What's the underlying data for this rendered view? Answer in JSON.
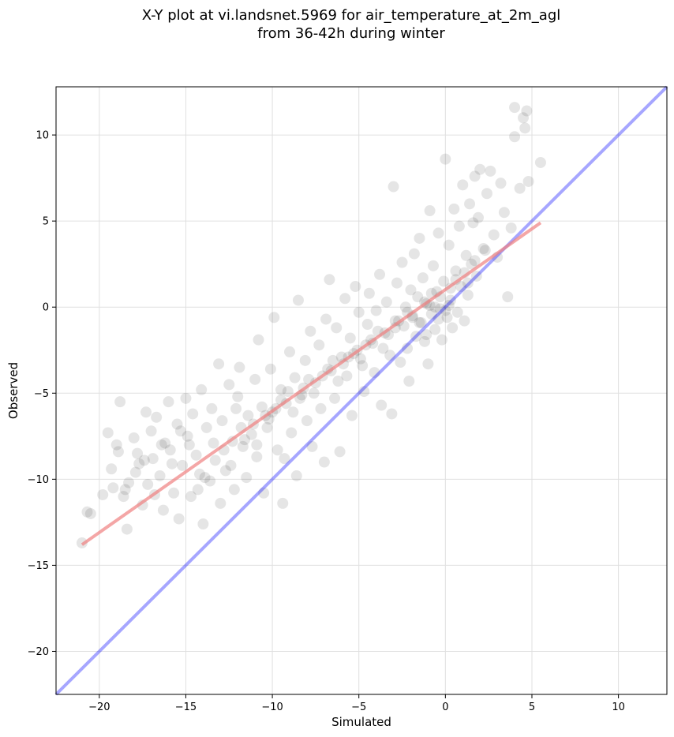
{
  "chart_data": {
    "type": "scatter",
    "title_line1": "X-Y plot at vi.landsnet.5969 for air_temperature_at_2m_agl",
    "title_line2": "from 36-42h during winter",
    "xlabel": "Simulated",
    "ylabel": "Observed",
    "xlim": [
      -22.5,
      12.8
    ],
    "ylim": [
      -22.5,
      12.8
    ],
    "xticks": [
      -20,
      -15,
      -10,
      -5,
      0,
      5,
      10
    ],
    "yticks": [
      -20,
      -15,
      -10,
      -5,
      0,
      5,
      10
    ],
    "xtick_labels": [
      "−20",
      "−15",
      "−10",
      "−5",
      "0",
      "5",
      "10"
    ],
    "ytick_labels": [
      "−20",
      "−15",
      "−10",
      "−5",
      "0",
      "5",
      "10"
    ],
    "grid": true,
    "marker_color": "#000000",
    "marker_alpha": 0.1,
    "points": [
      [
        -21.0,
        -13.7
      ],
      [
        -20.7,
        -11.9
      ],
      [
        -20.5,
        -12.0
      ],
      [
        -19.5,
        -7.3
      ],
      [
        -19.3,
        -9.4
      ],
      [
        -19.2,
        -10.5
      ],
      [
        -19.0,
        -8.0
      ],
      [
        -18.8,
        -5.5
      ],
      [
        -18.6,
        -11.0
      ],
      [
        -18.4,
        -12.9
      ],
      [
        -18.3,
        -10.2
      ],
      [
        -18.0,
        -7.6
      ],
      [
        -17.8,
        -8.5
      ],
      [
        -17.7,
        -9.1
      ],
      [
        -17.5,
        -11.5
      ],
      [
        -17.3,
        -6.1
      ],
      [
        -17.2,
        -10.3
      ],
      [
        -17.0,
        -7.2
      ],
      [
        -16.9,
        -8.8
      ],
      [
        -16.7,
        -6.4
      ],
      [
        -16.5,
        -9.8
      ],
      [
        -16.3,
        -11.8
      ],
      [
        -16.2,
        -7.9
      ],
      [
        -16.0,
        -5.5
      ],
      [
        -15.9,
        -8.3
      ],
      [
        -15.7,
        -10.8
      ],
      [
        -15.5,
        -6.8
      ],
      [
        -15.4,
        -12.3
      ],
      [
        -15.2,
        -9.2
      ],
      [
        -15.0,
        -5.3
      ],
      [
        -14.9,
        -7.5
      ],
      [
        -14.7,
        -11.0
      ],
      [
        -14.6,
        -6.2
      ],
      [
        -14.4,
        -8.6
      ],
      [
        -14.2,
        -9.7
      ],
      [
        -14.1,
        -4.8
      ],
      [
        -14.0,
        -12.6
      ],
      [
        -13.8,
        -7.0
      ],
      [
        -13.6,
        -10.1
      ],
      [
        -13.5,
        -5.9
      ],
      [
        -13.3,
        -8.9
      ],
      [
        -13.1,
        -3.3
      ],
      [
        -13.0,
        -11.4
      ],
      [
        -12.9,
        -6.6
      ],
      [
        -12.7,
        -9.5
      ],
      [
        -12.5,
        -4.5
      ],
      [
        -12.3,
        -7.8
      ],
      [
        -12.2,
        -10.6
      ],
      [
        -12.0,
        -5.2
      ],
      [
        -11.9,
        -3.5
      ],
      [
        -11.7,
        -8.1
      ],
      [
        -11.5,
        -9.9
      ],
      [
        -11.4,
        -6.3
      ],
      [
        -11.2,
        -7.4
      ],
      [
        -11.0,
        -4.2
      ],
      [
        -10.9,
        -8.7
      ],
      [
        -10.8,
        -1.9
      ],
      [
        -10.6,
        -5.8
      ],
      [
        -10.5,
        -10.8
      ],
      [
        -10.3,
        -7.0
      ],
      [
        -10.1,
        -3.6
      ],
      [
        -10.0,
        -6.1
      ],
      [
        -9.9,
        -0.6
      ],
      [
        -9.7,
        -8.3
      ],
      [
        -9.5,
        -4.8
      ],
      [
        -9.4,
        -11.4
      ],
      [
        -9.2,
        -5.6
      ],
      [
        -9.0,
        -2.6
      ],
      [
        -8.9,
        -7.3
      ],
      [
        -8.7,
        -4.1
      ],
      [
        -8.6,
        -9.8
      ],
      [
        -8.5,
        0.4
      ],
      [
        -8.3,
        -5.1
      ],
      [
        -8.1,
        -3.1
      ],
      [
        -8.0,
        -6.6
      ],
      [
        -7.8,
        -1.4
      ],
      [
        -7.7,
        -8.1
      ],
      [
        -7.5,
        -4.4
      ],
      [
        -7.3,
        -2.2
      ],
      [
        -7.2,
        -5.9
      ],
      [
        -7.0,
        -9.0
      ],
      [
        -6.9,
        -0.7
      ],
      [
        -6.7,
        1.6
      ],
      [
        -6.6,
        -3.7
      ],
      [
        -6.4,
        -5.3
      ],
      [
        -6.3,
        -1.2
      ],
      [
        -6.1,
        -8.4
      ],
      [
        -6.0,
        -2.9
      ],
      [
        -5.8,
        0.5
      ],
      [
        -5.7,
        -4.0
      ],
      [
        -5.5,
        -1.8
      ],
      [
        -5.4,
        -6.3
      ],
      [
        -5.2,
        1.2
      ],
      [
        -5.1,
        -2.5
      ],
      [
        -5.0,
        -0.3
      ],
      [
        -4.8,
        -3.4
      ],
      [
        -4.7,
        -4.9
      ],
      [
        -4.5,
        -1.0
      ],
      [
        -4.4,
        0.8
      ],
      [
        -4.2,
        -2.1
      ],
      [
        -4.1,
        -3.8
      ],
      [
        -4.0,
        -0.2
      ],
      [
        -3.8,
        1.9
      ],
      [
        -3.7,
        -5.7
      ],
      [
        -3.5,
        -1.5
      ],
      [
        -3.4,
        0.3
      ],
      [
        -3.2,
        -2.8
      ],
      [
        -3.1,
        -6.2
      ],
      [
        -3.0,
        7.0
      ],
      [
        -2.9,
        -0.8
      ],
      [
        -2.8,
        1.4
      ],
      [
        -2.6,
        -3.2
      ],
      [
        -2.5,
        2.6
      ],
      [
        -2.4,
        -1.1
      ],
      [
        -2.3,
        0.0
      ],
      [
        -2.2,
        -2.4
      ],
      [
        -2.1,
        -4.3
      ],
      [
        -2.0,
        1.0
      ],
      [
        -1.9,
        -0.5
      ],
      [
        -1.8,
        3.1
      ],
      [
        -1.7,
        -1.7
      ],
      [
        -1.6,
        0.6
      ],
      [
        -1.5,
        4.0
      ],
      [
        -1.4,
        -0.9
      ],
      [
        -1.3,
        1.7
      ],
      [
        -1.2,
        -2.0
      ],
      [
        -1.1,
        0.2
      ],
      [
        -1.0,
        -3.3
      ],
      [
        -0.9,
        5.6
      ],
      [
        -0.8,
        -0.4
      ],
      [
        -0.7,
        2.4
      ],
      [
        -0.6,
        -1.3
      ],
      [
        -0.5,
        0.9
      ],
      [
        -0.4,
        4.3
      ],
      [
        -0.3,
        -0.1
      ],
      [
        -0.2,
        -1.9
      ],
      [
        -0.1,
        1.5
      ],
      [
        0.0,
        8.6
      ],
      [
        0.1,
        -0.6
      ],
      [
        0.2,
        3.6
      ],
      [
        0.3,
        0.4
      ],
      [
        0.4,
        -1.2
      ],
      [
        0.5,
        5.7
      ],
      [
        0.6,
        2.1
      ],
      [
        0.7,
        -0.3
      ],
      [
        0.8,
        4.7
      ],
      [
        0.9,
        1.2
      ],
      [
        1.0,
        7.1
      ],
      [
        1.1,
        -0.8
      ],
      [
        1.2,
        3.0
      ],
      [
        1.3,
        0.7
      ],
      [
        1.4,
        6.0
      ],
      [
        1.5,
        2.5
      ],
      [
        1.6,
        4.9
      ],
      [
        1.7,
        7.6
      ],
      [
        1.8,
        1.8
      ],
      [
        1.9,
        5.2
      ],
      [
        2.0,
        8.0
      ],
      [
        2.2,
        3.4
      ],
      [
        2.4,
        6.6
      ],
      [
        2.6,
        7.9
      ],
      [
        2.8,
        4.2
      ],
      [
        3.0,
        2.9
      ],
      [
        3.2,
        7.2
      ],
      [
        3.4,
        5.5
      ],
      [
        3.6,
        0.6
      ],
      [
        3.8,
        4.6
      ],
      [
        4.0,
        11.6
      ],
      [
        4.0,
        9.9
      ],
      [
        4.3,
        6.9
      ],
      [
        4.5,
        11.0
      ],
      [
        4.6,
        10.4
      ],
      [
        4.7,
        11.4
      ],
      [
        4.8,
        7.3
      ],
      [
        5.5,
        8.4
      ],
      [
        -19.8,
        -10.9
      ],
      [
        -18.9,
        -8.4
      ],
      [
        -17.9,
        -9.6
      ],
      [
        -16.8,
        -10.9
      ],
      [
        -15.8,
        -9.1
      ],
      [
        -14.8,
        -8.0
      ],
      [
        -13.9,
        -9.9
      ],
      [
        -12.8,
        -8.3
      ],
      [
        -11.8,
        -7.0
      ],
      [
        -11.1,
        -6.8
      ],
      [
        -10.4,
        -6.3
      ],
      [
        -9.8,
        -5.9
      ],
      [
        -9.1,
        -4.9
      ],
      [
        -8.4,
        -5.3
      ],
      [
        -7.9,
        -4.2
      ],
      [
        -7.1,
        -4.0
      ],
      [
        -6.5,
        -3.1
      ],
      [
        -5.9,
        -3.3
      ],
      [
        -5.3,
        -2.7
      ],
      [
        -4.6,
        -2.2
      ],
      [
        -3.9,
        -1.4
      ],
      [
        -3.3,
        -1.6
      ],
      [
        -2.7,
        -0.8
      ],
      [
        -1.9,
        -0.6
      ],
      [
        -1.2,
        0.3
      ],
      [
        -0.6,
        0.0
      ],
      [
        0.3,
        1.1
      ],
      [
        1.1,
        2.0
      ],
      [
        1.7,
        2.7
      ],
      [
        2.3,
        3.3
      ],
      [
        -0.3,
        0.6
      ],
      [
        -0.9,
        0.1
      ],
      [
        -11.6,
        -7.7
      ],
      [
        -10.9,
        -8.0
      ],
      [
        -10.2,
        -6.5
      ],
      [
        -9.5,
        -5.4
      ],
      [
        -8.8,
        -6.1
      ],
      [
        -8.2,
        -4.7
      ],
      [
        -7.6,
        -5.0
      ],
      [
        -6.8,
        -3.6
      ],
      [
        -6.2,
        -4.3
      ],
      [
        -5.6,
        -2.9
      ],
      [
        -4.9,
        -3.0
      ],
      [
        -4.3,
        -1.9
      ],
      [
        -3.6,
        -2.4
      ],
      [
        -2.9,
        -1.2
      ],
      [
        -2.2,
        -0.3
      ],
      [
        -1.5,
        -0.9
      ],
      [
        -0.8,
        0.8
      ],
      [
        0.0,
        -0.2
      ],
      [
        0.6,
        1.6
      ],
      [
        1.3,
        1.4
      ],
      [
        -1.1,
        -1.6
      ],
      [
        -0.4,
        -0.7
      ],
      [
        0.2,
        0.1
      ],
      [
        -12.4,
        -9.2
      ],
      [
        -13.4,
        -7.9
      ],
      [
        -14.3,
        -10.6
      ],
      [
        -15.3,
        -7.2
      ],
      [
        -16.4,
        -8.0
      ],
      [
        -17.4,
        -8.9
      ],
      [
        -18.5,
        -10.6
      ],
      [
        -12.1,
        -5.9
      ],
      [
        -9.3,
        -8.8
      ]
    ],
    "fit_line": {
      "x": [
        -21.0,
        5.5
      ],
      "y": [
        -13.8,
        4.9
      ],
      "color": "#f08080",
      "alpha": 0.7
    },
    "identity_line": {
      "x": [
        -22.5,
        12.8
      ],
      "y": [
        -22.5,
        12.8
      ],
      "color": "#0000ff",
      "alpha": 0.35
    }
  }
}
